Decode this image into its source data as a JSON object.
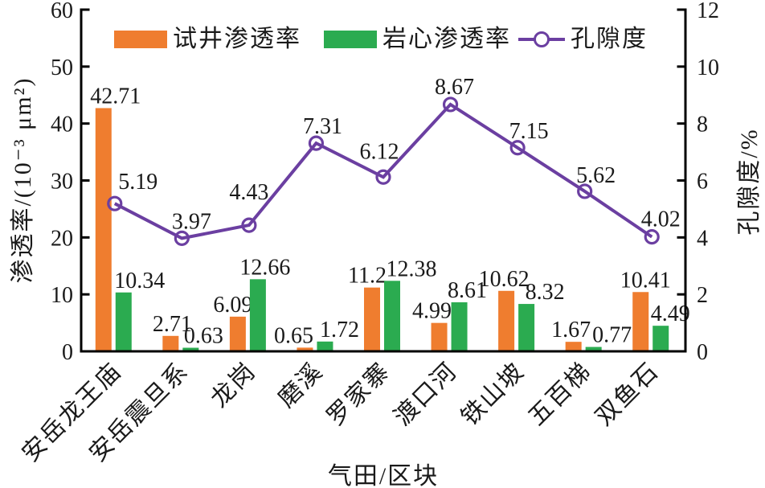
{
  "chart_data": {
    "type": "bar-line-combo",
    "title": "",
    "xlabel": "气田/区块",
    "categories": [
      "安岳龙王庙",
      "安岳震旦系",
      "龙岗",
      "磨溪",
      "罗家寨",
      "渡口河",
      "铁山坡",
      "五百梯",
      "双鱼石"
    ],
    "series": [
      {
        "name": "试井渗透率",
        "type": "bar",
        "axis": "left",
        "color": "#EF7D2F",
        "values": [
          42.71,
          2.71,
          6.09,
          0.65,
          11.2,
          4.99,
          10.62,
          1.67,
          10.41
        ]
      },
      {
        "name": "岩心渗透率",
        "type": "bar",
        "axis": "left",
        "color": "#2BAB50",
        "values": [
          10.34,
          0.63,
          12.66,
          1.72,
          12.38,
          8.61,
          8.32,
          0.77,
          4.49
        ]
      },
      {
        "name": "孔隙度",
        "type": "line",
        "axis": "right",
        "color": "#6B3FA1",
        "marker": "open-circle",
        "values": [
          5.19,
          3.97,
          4.43,
          7.31,
          6.12,
          8.67,
          7.15,
          5.62,
          4.02
        ]
      }
    ],
    "left_axis": {
      "label": "渗透率/(10⁻³ μm²)",
      "min": 0,
      "max": 60,
      "ticks": [
        0,
        10,
        20,
        30,
        40,
        50,
        60
      ]
    },
    "right_axis": {
      "label": "孔隙度/%",
      "min": 0,
      "max": 12,
      "ticks": [
        0,
        2,
        4,
        6,
        8,
        10,
        12
      ]
    },
    "legend_position": "top-inside",
    "grid": false,
    "axis_color": "#000000",
    "text_color": "#1a1a1a"
  }
}
